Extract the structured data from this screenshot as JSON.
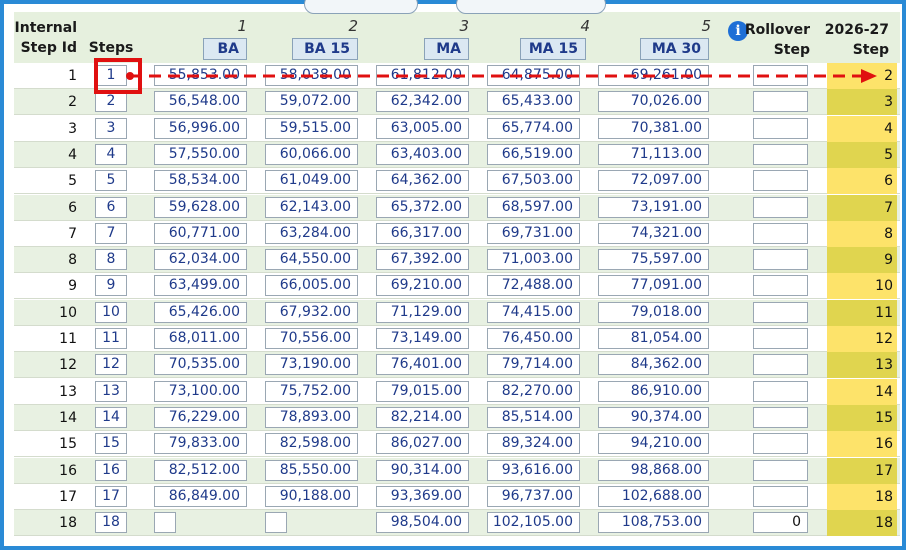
{
  "header": {
    "internal_step_id_line1": "Internal",
    "internal_step_id_line2": "Step Id",
    "steps": "Steps",
    "col_numbers": [
      "1",
      "2",
      "3",
      "4",
      "5"
    ],
    "columns": [
      "BA",
      "BA 15",
      "MA",
      "MA 15",
      "MA 30"
    ],
    "info_glyph": "i",
    "rollover_line1": "Rollover",
    "rollover_line2": "Step",
    "year_line1": "2026-27",
    "year_line2": "Step"
  },
  "rows": [
    {
      "id": "1",
      "step": "1",
      "salaries": [
        "55,853.00",
        "58,038.00",
        "61,812.00",
        "64,875.00",
        "69,261.00"
      ],
      "rollover": "",
      "next": "2"
    },
    {
      "id": "2",
      "step": "2",
      "salaries": [
        "56,548.00",
        "59,072.00",
        "62,342.00",
        "65,433.00",
        "70,026.00"
      ],
      "rollover": "",
      "next": "3"
    },
    {
      "id": "3",
      "step": "3",
      "salaries": [
        "56,996.00",
        "59,515.00",
        "63,005.00",
        "65,774.00",
        "70,381.00"
      ],
      "rollover": "",
      "next": "4"
    },
    {
      "id": "4",
      "step": "4",
      "salaries": [
        "57,550.00",
        "60,066.00",
        "63,403.00",
        "66,519.00",
        "71,113.00"
      ],
      "rollover": "",
      "next": "5"
    },
    {
      "id": "5",
      "step": "5",
      "salaries": [
        "58,534.00",
        "61,049.00",
        "64,362.00",
        "67,503.00",
        "72,097.00"
      ],
      "rollover": "",
      "next": "6"
    },
    {
      "id": "6",
      "step": "6",
      "salaries": [
        "59,628.00",
        "62,143.00",
        "65,372.00",
        "68,597.00",
        "73,191.00"
      ],
      "rollover": "",
      "next": "7"
    },
    {
      "id": "7",
      "step": "7",
      "salaries": [
        "60,771.00",
        "63,284.00",
        "66,317.00",
        "69,731.00",
        "74,321.00"
      ],
      "rollover": "",
      "next": "8"
    },
    {
      "id": "8",
      "step": "8",
      "salaries": [
        "62,034.00",
        "64,550.00",
        "67,392.00",
        "71,003.00",
        "75,597.00"
      ],
      "rollover": "",
      "next": "9"
    },
    {
      "id": "9",
      "step": "9",
      "salaries": [
        "63,499.00",
        "66,005.00",
        "69,210.00",
        "72,488.00",
        "77,091.00"
      ],
      "rollover": "",
      "next": "10"
    },
    {
      "id": "10",
      "step": "10",
      "salaries": [
        "65,426.00",
        "67,932.00",
        "71,129.00",
        "74,415.00",
        "79,018.00"
      ],
      "rollover": "",
      "next": "11"
    },
    {
      "id": "11",
      "step": "11",
      "salaries": [
        "68,011.00",
        "70,556.00",
        "73,149.00",
        "76,450.00",
        "81,054.00"
      ],
      "rollover": "",
      "next": "12"
    },
    {
      "id": "12",
      "step": "12",
      "salaries": [
        "70,535.00",
        "73,190.00",
        "76,401.00",
        "79,714.00",
        "84,362.00"
      ],
      "rollover": "",
      "next": "13"
    },
    {
      "id": "13",
      "step": "13",
      "salaries": [
        "73,100.00",
        "75,752.00",
        "79,015.00",
        "82,270.00",
        "86,910.00"
      ],
      "rollover": "",
      "next": "14"
    },
    {
      "id": "14",
      "step": "14",
      "salaries": [
        "76,229.00",
        "78,893.00",
        "82,214.00",
        "85,514.00",
        "90,374.00"
      ],
      "rollover": "",
      "next": "15"
    },
    {
      "id": "15",
      "step": "15",
      "salaries": [
        "79,833.00",
        "82,598.00",
        "86,027.00",
        "89,324.00",
        "94,210.00"
      ],
      "rollover": "",
      "next": "16"
    },
    {
      "id": "16",
      "step": "16",
      "salaries": [
        "82,512.00",
        "85,550.00",
        "90,314.00",
        "93,616.00",
        "98,868.00"
      ],
      "rollover": "",
      "next": "17"
    },
    {
      "id": "17",
      "step": "17",
      "salaries": [
        "86,849.00",
        "90,188.00",
        "93,369.00",
        "96,737.00",
        "102,688.00"
      ],
      "rollover": "",
      "next": "18"
    },
    {
      "id": "18",
      "step": "18",
      "salaries": [
        "",
        "",
        "98,504.00",
        "102,105.00",
        "108,753.00"
      ],
      "rollover": "0",
      "next": "18"
    }
  ],
  "colors": {
    "header_bg": "#e6f0de",
    "row_alt_bg": "#e8f1e2",
    "next_step_bg_light": "#fde36a",
    "next_step_bg_dark": "#e0d54f",
    "annotation_red": "#e01010",
    "frame_blue": "#2a8ad6"
  }
}
